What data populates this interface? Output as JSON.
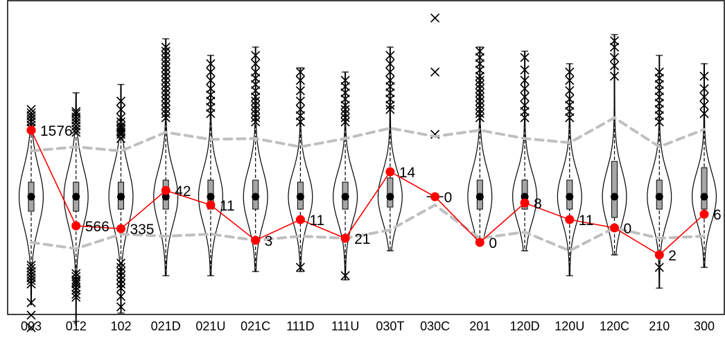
{
  "chart_data": {
    "type": "violin",
    "title": "",
    "xlabel": "",
    "ylabel": "",
    "ylim": [
      -3.6,
      3.6
    ],
    "grid": false,
    "legend": "none",
    "colors": {
      "observed_line": "#ff0000",
      "observed_point": "#ff0000",
      "band": "#bfbfbf",
      "violin": "#000000",
      "box": "#a6a6a6",
      "median": "#000000"
    },
    "categories": [
      "003",
      "012",
      "102",
      "021D",
      "021U",
      "021C",
      "111D",
      "111U",
      "030T",
      "030C",
      "201",
      "120D",
      "120U",
      "120C",
      "210",
      "300"
    ],
    "observed": {
      "z": [
        1.6,
        -0.7,
        -0.77,
        0.15,
        -0.2,
        -1.05,
        -0.55,
        -1.0,
        0.6,
        0.0,
        -1.1,
        -0.15,
        -0.55,
        -0.75,
        -1.4,
        -0.42
      ],
      "labels": [
        "1576",
        "566",
        "335",
        "42",
        "11",
        "3",
        "11",
        "21",
        "14",
        "0",
        "0",
        "8",
        "11",
        "0",
        "2",
        "6"
      ]
    },
    "band": {
      "upper": [
        1.1,
        1.2,
        1.1,
        1.55,
        1.38,
        1.4,
        1.2,
        1.4,
        1.65,
        1.45,
        1.6,
        1.4,
        1.3,
        1.9,
        1.2,
        1.62
      ],
      "lower": [
        -1.1,
        -1.25,
        -0.9,
        -0.95,
        -0.9,
        -1.05,
        -0.95,
        -1.0,
        -0.8,
        -0.2,
        -1.0,
        -0.85,
        -1.3,
        -0.75,
        -1.0,
        -0.95
      ]
    },
    "distributions": [
      {
        "min": -2.6,
        "max": 2.0,
        "q1": -0.35,
        "q3": 0.35,
        "wlo": -2.0,
        "whi": 1.9,
        "median": 0.0,
        "spread": 0.7,
        "out_hi": [
          1.65,
          1.72,
          1.8,
          1.88,
          1.95,
          2.02,
          2.1
        ],
        "out_lo": [
          -1.65,
          -1.72,
          -1.8,
          -1.88,
          -1.95,
          -2.02,
          -2.1,
          -2.55,
          -2.85,
          -3.15
        ]
      },
      {
        "min": -3.1,
        "max": 2.5,
        "q1": -0.35,
        "q3": 0.35,
        "wlo": -3.0,
        "whi": 2.5,
        "median": 0.0,
        "spread": 0.7,
        "out_hi": [
          1.55,
          1.62,
          1.7,
          1.78,
          1.85,
          1.92,
          2.0,
          2.05
        ],
        "out_lo": [
          -1.85,
          -1.92,
          -2.0,
          -2.05,
          -2.1,
          -2.18,
          -2.25,
          -2.35,
          -2.42
        ]
      },
      {
        "min": -2.8,
        "max": 2.7,
        "q1": -0.3,
        "q3": 0.35,
        "wlo": -2.8,
        "whi": 2.7,
        "median": 0.0,
        "spread": 0.7,
        "out_hi": [
          1.4,
          1.5,
          1.55,
          1.6,
          1.65,
          1.7,
          1.8,
          1.9,
          2.1,
          2.3
        ],
        "out_lo": [
          -1.6,
          -1.7,
          -1.8,
          -1.9,
          -2.0,
          -2.1,
          -2.2,
          -2.4,
          -2.65
        ]
      },
      {
        "min": -1.9,
        "max": 3.8,
        "q1": -0.3,
        "q3": 0.4,
        "wlo": -1.9,
        "whi": 3.8,
        "median": 0.0,
        "spread": 0.65,
        "out_hi": [
          1.9,
          2.0,
          2.1,
          2.2,
          2.3,
          2.4,
          2.5,
          2.6,
          2.7,
          2.8,
          2.9,
          3.0,
          3.1,
          3.2,
          3.3,
          3.4,
          3.5,
          3.6
        ]
      },
      {
        "min": -1.9,
        "max": 3.4,
        "q1": -0.3,
        "q3": 0.4,
        "wlo": -1.9,
        "whi": 3.4,
        "median": 0.0,
        "spread": 0.65,
        "out_hi": [
          2.0,
          2.15,
          2.3,
          2.45,
          2.6,
          2.8,
          3.0,
          3.2
        ]
      },
      {
        "min": -1.8,
        "max": 3.6,
        "q1": -0.3,
        "q3": 0.4,
        "wlo": -1.8,
        "whi": 3.6,
        "median": 0.0,
        "spread": 0.65,
        "out_hi": [
          1.8,
          1.9,
          2.0,
          2.1,
          2.2,
          2.3,
          2.4,
          2.55,
          2.7,
          2.85,
          3.0,
          3.2,
          3.4
        ]
      },
      {
        "min": -1.8,
        "max": 3.1,
        "q1": -0.3,
        "q3": 0.35,
        "wlo": -1.8,
        "whi": 3.1,
        "median": 0.0,
        "spread": 0.6,
        "out_hi": [
          1.8,
          1.95,
          2.1,
          2.3,
          2.55,
          2.8,
          3.0
        ],
        "out_lo": [
          -1.7
        ]
      },
      {
        "min": -2.0,
        "max": 3.0,
        "q1": -0.3,
        "q3": 0.35,
        "wlo": -2.0,
        "whi": 3.0,
        "median": 0.0,
        "spread": 0.6,
        "out_hi": [
          1.8,
          1.9,
          2.0,
          2.1,
          2.2,
          2.35,
          2.5,
          2.65,
          2.8
        ],
        "out_lo": [
          -1.9
        ]
      },
      {
        "min": -1.3,
        "max": 3.6,
        "q1": -0.25,
        "q3": 0.45,
        "wlo": -1.3,
        "whi": 3.6,
        "median": 0.0,
        "spread": 0.6,
        "out_hi": [
          2.1,
          2.2,
          2.35,
          2.5,
          2.65,
          2.8,
          3.0,
          3.2,
          3.4
        ]
      },
      {
        "min": 0.0,
        "max": 0.0,
        "q1": 0.0,
        "q3": 0.0,
        "wlo": 0.0,
        "whi": 0.0,
        "median": 0.0,
        "spread": 0.0,
        "out_hi": [
          1.5,
          3.0,
          4.3
        ]
      },
      {
        "min": -1.1,
        "max": 3.6,
        "q1": -0.3,
        "q3": 0.4,
        "wlo": -1.1,
        "whi": 3.6,
        "median": 0.0,
        "spread": 0.65,
        "out_hi": [
          1.9,
          2.0,
          2.1,
          2.2,
          2.3,
          2.4,
          2.5,
          2.6,
          2.7,
          2.8,
          2.9,
          3.05,
          3.2,
          3.35,
          3.5
        ]
      },
      {
        "min": -1.3,
        "max": 3.5,
        "q1": -0.3,
        "q3": 0.4,
        "wlo": -1.3,
        "whi": 3.5,
        "median": 0.0,
        "spread": 0.6,
        "out_hi": [
          1.9,
          2.05,
          2.2,
          2.4,
          2.6,
          2.8,
          3.05,
          3.35
        ]
      },
      {
        "min": -1.9,
        "max": 3.2,
        "q1": -0.3,
        "q3": 0.4,
        "wlo": -1.9,
        "whi": 3.2,
        "median": 0.0,
        "spread": 0.6,
        "out_hi": [
          1.9,
          2.05,
          2.2,
          2.35,
          2.55,
          2.8,
          3.0
        ]
      },
      {
        "min": -1.4,
        "max": 3.9,
        "q1": -0.5,
        "q3": 0.85,
        "wlo": -1.4,
        "whi": 3.9,
        "median": 0.0,
        "spread": 0.65,
        "out_hi": [
          2.9,
          3.15,
          3.35,
          3.6,
          3.75
        ]
      },
      {
        "min": -2.2,
        "max": 3.4,
        "q1": -0.3,
        "q3": 0.4,
        "wlo": -2.2,
        "whi": 3.4,
        "median": 0.0,
        "spread": 0.6,
        "out_hi": [
          1.8,
          1.95,
          2.1,
          2.25,
          2.4,
          2.55,
          2.7,
          2.85,
          3.0
        ],
        "out_lo": [
          -1.7
        ]
      },
      {
        "min": -1.7,
        "max": 3.2,
        "q1": -0.3,
        "q3": 0.7,
        "wlo": -1.7,
        "whi": 3.2,
        "median": 0.0,
        "spread": 0.6,
        "out_hi": [
          2.0,
          2.2,
          2.4,
          2.6,
          2.9
        ]
      }
    ]
  }
}
